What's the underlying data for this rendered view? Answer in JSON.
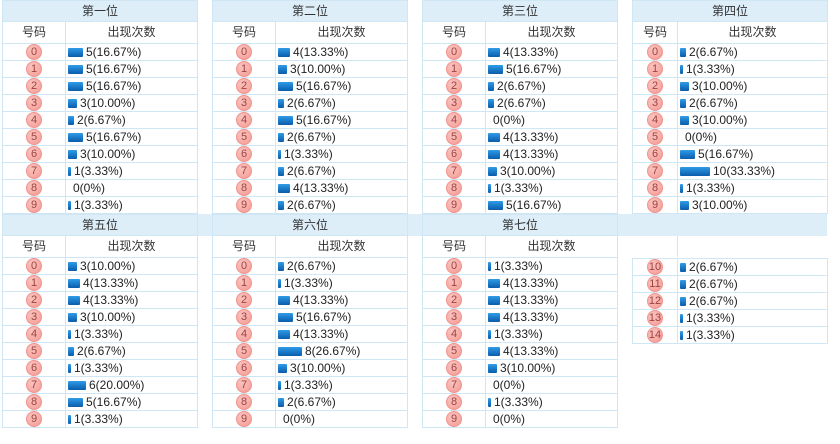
{
  "columns": {
    "number": "号码",
    "count": "出现次数"
  },
  "colors": {
    "header_bg": "#ddeef9",
    "border": "#cfe6f4",
    "badge_bg": "#f7aba6",
    "badge_border": "#f0938d",
    "badge_text": "#9c4340",
    "bar_top": "#2f9ce8",
    "bar_bottom": "#0a5cab",
    "text": "#333333"
  },
  "chart_data": [
    {
      "type": "bar",
      "title": "第一位",
      "categories": [
        "0",
        "1",
        "2",
        "3",
        "4",
        "5",
        "6",
        "7",
        "8",
        "9"
      ],
      "values": [
        5,
        5,
        5,
        3,
        2,
        5,
        3,
        1,
        0,
        1
      ],
      "labels": [
        "5(16.67%)",
        "5(16.67%)",
        "5(16.67%)",
        "3(10.00%)",
        "2(6.67%)",
        "5(16.67%)",
        "3(10.00%)",
        "1(3.33%)",
        "0(0%)",
        "1(3.33%)"
      ]
    },
    {
      "type": "bar",
      "title": "第二位",
      "categories": [
        "0",
        "1",
        "2",
        "3",
        "4",
        "5",
        "6",
        "7",
        "8",
        "9"
      ],
      "values": [
        4,
        3,
        5,
        2,
        5,
        2,
        1,
        2,
        4,
        2
      ],
      "labels": [
        "4(13.33%)",
        "3(10.00%)",
        "5(16.67%)",
        "2(6.67%)",
        "5(16.67%)",
        "2(6.67%)",
        "1(3.33%)",
        "2(6.67%)",
        "4(13.33%)",
        "2(6.67%)"
      ]
    },
    {
      "type": "bar",
      "title": "第三位",
      "categories": [
        "0",
        "1",
        "2",
        "3",
        "4",
        "5",
        "6",
        "7",
        "8",
        "9"
      ],
      "values": [
        4,
        5,
        2,
        2,
        0,
        4,
        4,
        3,
        1,
        5
      ],
      "labels": [
        "4(13.33%)",
        "5(16.67%)",
        "2(6.67%)",
        "2(6.67%)",
        "0(0%)",
        "4(13.33%)",
        "4(13.33%)",
        "3(10.00%)",
        "1(3.33%)",
        "5(16.67%)"
      ]
    },
    {
      "type": "bar",
      "title": "第四位",
      "categories": [
        "0",
        "1",
        "2",
        "3",
        "4",
        "5",
        "6",
        "7",
        "8",
        "9"
      ],
      "values": [
        2,
        1,
        3,
        2,
        3,
        0,
        5,
        10,
        1,
        3
      ],
      "labels": [
        "2(6.67%)",
        "1(3.33%)",
        "3(10.00%)",
        "2(6.67%)",
        "3(10.00%)",
        "0(0%)",
        "5(16.67%)",
        "10(33.33%)",
        "1(3.33%)",
        "3(10.00%)"
      ]
    },
    {
      "type": "bar",
      "title": "第五位",
      "categories": [
        "0",
        "1",
        "2",
        "3",
        "4",
        "5",
        "6",
        "7",
        "8",
        "9"
      ],
      "values": [
        3,
        4,
        4,
        3,
        1,
        2,
        1,
        6,
        5,
        1
      ],
      "labels": [
        "3(10.00%)",
        "4(13.33%)",
        "4(13.33%)",
        "3(10.00%)",
        "1(3.33%)",
        "2(6.67%)",
        "1(3.33%)",
        "6(20.00%)",
        "5(16.67%)",
        "1(3.33%)"
      ]
    },
    {
      "type": "bar",
      "title": "第六位",
      "categories": [
        "0",
        "1",
        "2",
        "3",
        "4",
        "5",
        "6",
        "7",
        "8",
        "9"
      ],
      "values": [
        2,
        1,
        4,
        5,
        4,
        8,
        3,
        1,
        2,
        0
      ],
      "labels": [
        "2(6.67%)",
        "1(3.33%)",
        "4(13.33%)",
        "5(16.67%)",
        "4(13.33%)",
        "8(26.67%)",
        "3(10.00%)",
        "1(3.33%)",
        "2(6.67%)",
        "0(0%)"
      ]
    },
    {
      "type": "bar",
      "title": "第七位",
      "categories": [
        "0",
        "1",
        "2",
        "3",
        "4",
        "5",
        "6",
        "7",
        "8",
        "9"
      ],
      "values": [
        1,
        4,
        4,
        4,
        1,
        4,
        3,
        0,
        1,
        0
      ],
      "labels": [
        "1(3.33%)",
        "4(13.33%)",
        "4(13.33%)",
        "4(13.33%)",
        "1(3.33%)",
        "4(13.33%)",
        "3(10.00%)",
        "0(0%)",
        "1(3.33%)",
        "0(0%)"
      ]
    },
    {
      "type": "bar",
      "title": "",
      "show_headers": false,
      "categories": [
        "10",
        "11",
        "12",
        "13",
        "14"
      ],
      "values": [
        2,
        2,
        2,
        1,
        1
      ],
      "labels": [
        "2(6.67%)",
        "2(6.67%)",
        "2(6.67%)",
        "1(3.33%)",
        "1(3.33%)"
      ]
    }
  ]
}
